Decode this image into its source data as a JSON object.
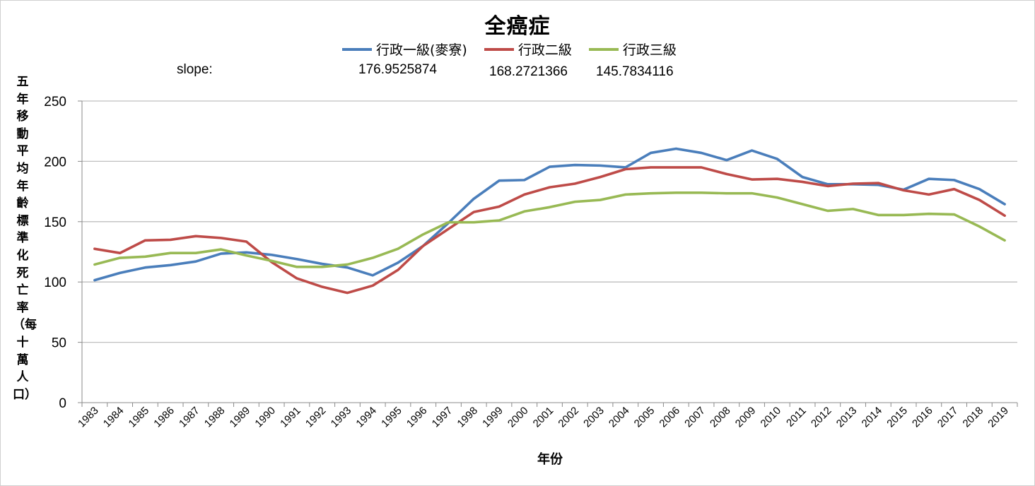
{
  "chart_data": {
    "type": "line",
    "title": "全癌症",
    "xlabel": "年份",
    "ylabel": "五年移動平均年齡標準化死亡率（每十萬人口）",
    "ylim": [
      0,
      250
    ],
    "yticks": [
      0,
      50,
      100,
      150,
      200,
      250
    ],
    "grid": true,
    "legend_position": "top-center",
    "slope_label": "slope:",
    "categories": [
      "1983",
      "1984",
      "1985",
      "1986",
      "1987",
      "1988",
      "1989",
      "1990",
      "1991",
      "1992",
      "1993",
      "1994",
      "1995",
      "1996",
      "1997",
      "1998",
      "1999",
      "2000",
      "2001",
      "2002",
      "2003",
      "2004",
      "2005",
      "2006",
      "2007",
      "2008",
      "2009",
      "2010",
      "2011",
      "2012",
      "2013",
      "2014",
      "2015",
      "2016",
      "2017",
      "2018",
      "2019"
    ],
    "series": [
      {
        "name": "行政一級(麥寮)",
        "color": "#4a7ebb",
        "slope": "176.9525874",
        "values": [
          101.5,
          107.5,
          112,
          114,
          117,
          123.5,
          124.5,
          122.5,
          119,
          115,
          112,
          105.5,
          116,
          130,
          149,
          169,
          184,
          184.5,
          195.5,
          197,
          196.5,
          195,
          207,
          210.5,
          207,
          201,
          209,
          202,
          187,
          181,
          181,
          180.5,
          176.5,
          185.5,
          184.5,
          177,
          164.5
        ]
      },
      {
        "name": "行政二級",
        "color": "#be4b48",
        "slope": "168.2721366",
        "values": [
          127.5,
          124,
          134.5,
          135,
          138,
          136.5,
          133.5,
          116.5,
          103,
          96,
          91,
          97,
          110,
          130,
          144,
          158,
          162.5,
          172.5,
          178.5,
          181.5,
          187,
          193.5,
          195,
          195,
          195,
          189.5,
          185,
          185.5,
          183,
          179.5,
          181.5,
          182,
          176,
          172.5,
          177,
          168,
          155
        ]
      },
      {
        "name": "行政三級",
        "color": "#98b954",
        "slope": "145.7834116",
        "values": [
          114.5,
          120,
          121,
          124,
          124,
          127,
          122,
          117.5,
          112.5,
          112.5,
          114.5,
          120,
          127.5,
          139.5,
          149.5,
          149.5,
          151,
          158.5,
          162,
          166.5,
          168,
          172.5,
          173.5,
          174,
          174,
          173.5,
          173.5,
          170,
          164.5,
          159,
          160.5,
          155.5,
          155.5,
          156.5,
          156,
          146,
          134.5
        ]
      }
    ]
  }
}
